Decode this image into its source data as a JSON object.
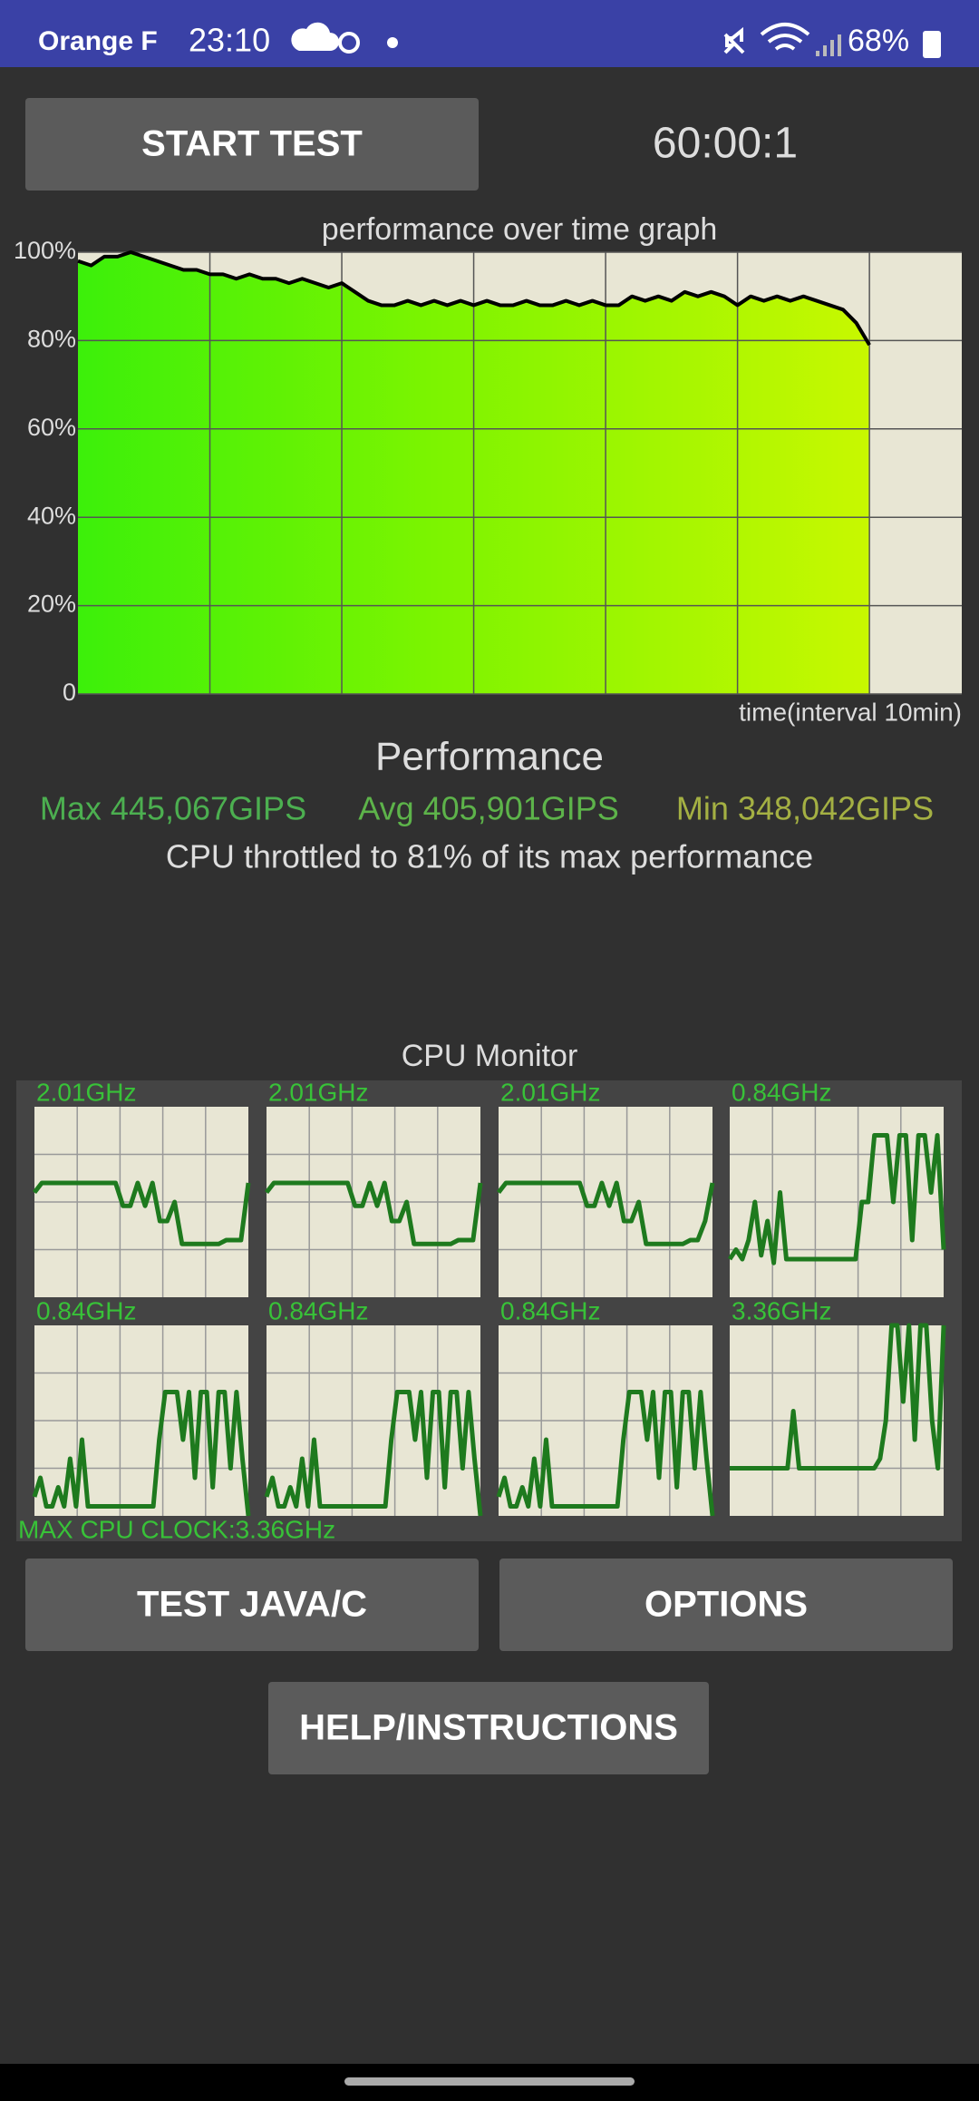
{
  "status_bar": {
    "carrier": "Orange F",
    "time": "23:10",
    "battery": "68%"
  },
  "buttons": {
    "start": "START TEST",
    "java": "TEST JAVA/C",
    "options": "OPTIONS",
    "help": "HELP/INSTRUCTIONS"
  },
  "timer": "60:00:1",
  "chart_data": {
    "type": "line",
    "title": "performance over time graph",
    "x_label": "time(interval 10min)",
    "xlim": [
      0,
      67
    ],
    "xticks": [
      10,
      20,
      30,
      40,
      50,
      60
    ],
    "ylim": [
      0,
      100
    ],
    "yticks": [
      0,
      {
        "value": 20,
        "label": "20%"
      },
      {
        "value": 40,
        "label": "40%"
      },
      {
        "value": 60,
        "label": "60%"
      },
      {
        "value": 80,
        "label": "80%"
      },
      {
        "value": 100,
        "label": "100%"
      }
    ],
    "grid": true,
    "color": "#000000",
    "x": [
      0,
      1,
      2,
      3,
      4,
      5,
      6,
      7,
      8,
      9,
      10,
      11,
      12,
      13,
      14,
      15,
      16,
      17,
      18,
      19,
      20,
      21,
      22,
      23,
      24,
      25,
      26,
      27,
      28,
      29,
      30,
      31,
      32,
      33,
      34,
      35,
      36,
      37,
      38,
      39,
      40,
      41,
      42,
      43,
      44,
      45,
      46,
      47,
      48,
      49,
      50,
      51,
      52,
      53,
      54,
      55,
      56,
      57,
      58,
      59,
      60
    ],
    "values": [
      98,
      97,
      99,
      99,
      100,
      99,
      98,
      97,
      96,
      96,
      95,
      95,
      94,
      95,
      94,
      94,
      93,
      94,
      93,
      92,
      93,
      91,
      89,
      88,
      88,
      89,
      88,
      89,
      88,
      89,
      88,
      89,
      88,
      88,
      89,
      88,
      88,
      89,
      88,
      89,
      88,
      88,
      90,
      89,
      90,
      89,
      91,
      90,
      91,
      90,
      88,
      90,
      89,
      90,
      89,
      90,
      89,
      88,
      87,
      84,
      79
    ]
  },
  "performance": {
    "title": "Performance",
    "max": "Max 445,067GIPS",
    "avg": "Avg 405,901GIPS",
    "min": "Min 348,042GIPS",
    "throttle": "CPU throttled to 81% of its max performance"
  },
  "cpu_monitor": {
    "title": "CPU Monitor",
    "max_clock": "MAX CPU CLOCK:3.36GHz",
    "ylim": [
      0,
      100
    ],
    "color": "#1e7a1e",
    "cores": [
      {
        "label": "2.01GHz",
        "values": [
          55,
          60,
          60,
          60,
          60,
          60,
          60,
          60,
          60,
          60,
          60,
          60,
          48,
          48,
          60,
          48,
          60,
          40,
          40,
          50,
          28,
          28,
          28,
          28,
          28,
          28,
          30,
          30,
          30,
          60
        ]
      },
      {
        "label": "2.01GHz",
        "values": [
          55,
          60,
          60,
          60,
          60,
          60,
          60,
          60,
          60,
          60,
          60,
          60,
          48,
          48,
          60,
          48,
          60,
          40,
          40,
          50,
          28,
          28,
          28,
          28,
          28,
          28,
          30,
          30,
          30,
          60
        ]
      },
      {
        "label": "2.01GHz",
        "values": [
          55,
          60,
          60,
          60,
          60,
          60,
          60,
          60,
          60,
          60,
          60,
          60,
          48,
          48,
          60,
          48,
          60,
          40,
          40,
          50,
          28,
          28,
          28,
          28,
          28,
          28,
          30,
          30,
          40,
          60
        ]
      },
      {
        "label": "0.84GHz",
        "values": [
          20,
          25,
          20,
          30,
          50,
          22,
          40,
          18,
          55,
          20,
          20,
          20,
          20,
          20,
          20,
          20,
          20,
          20,
          20,
          20,
          20,
          50,
          50,
          85,
          85,
          85,
          50,
          85,
          85,
          30,
          85,
          85,
          55,
          85,
          25
        ]
      },
      {
        "label": "0.84GHz",
        "values": [
          10,
          20,
          5,
          5,
          15,
          5,
          30,
          5,
          40,
          5,
          5,
          5,
          5,
          5,
          5,
          5,
          5,
          5,
          5,
          5,
          5,
          40,
          65,
          65,
          65,
          40,
          65,
          20,
          65,
          65,
          15,
          65,
          65,
          25,
          65,
          30,
          0
        ]
      },
      {
        "label": "0.84GHz",
        "values": [
          10,
          20,
          5,
          5,
          15,
          5,
          30,
          5,
          40,
          5,
          5,
          5,
          5,
          5,
          5,
          5,
          5,
          5,
          5,
          5,
          5,
          40,
          65,
          65,
          65,
          40,
          65,
          20,
          65,
          65,
          15,
          65,
          65,
          25,
          65,
          30,
          0
        ]
      },
      {
        "label": "0.84GHz",
        "values": [
          10,
          20,
          5,
          5,
          15,
          5,
          30,
          5,
          40,
          5,
          5,
          5,
          5,
          5,
          5,
          5,
          5,
          5,
          5,
          5,
          5,
          40,
          65,
          65,
          65,
          40,
          65,
          20,
          65,
          65,
          15,
          65,
          65,
          25,
          65,
          30,
          0
        ]
      },
      {
        "label": "3.36GHz",
        "values": [
          25,
          25,
          25,
          25,
          25,
          25,
          25,
          25,
          25,
          25,
          25,
          55,
          25,
          25,
          25,
          25,
          25,
          25,
          25,
          25,
          25,
          25,
          25,
          25,
          25,
          25,
          30,
          50,
          100,
          100,
          60,
          100,
          40,
          100,
          100,
          50,
          25,
          100
        ]
      }
    ]
  }
}
